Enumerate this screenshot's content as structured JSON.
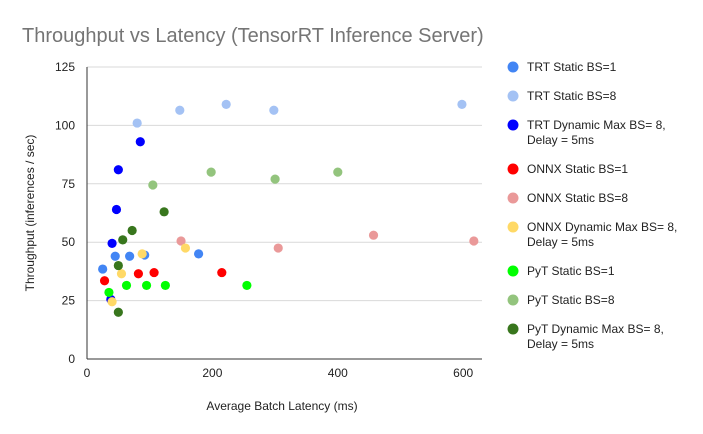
{
  "chart_data": {
    "type": "scatter",
    "title": "Throughput vs Latency (TensorRT Inference Server)",
    "xlabel": "Average Batch Latency (ms)",
    "ylabel": "Throughput (inferences / sec)",
    "xlim": [
      0,
      630
    ],
    "ylim": [
      0,
      125
    ],
    "xticks": [
      0,
      200,
      400,
      600
    ],
    "yticks": [
      0,
      25,
      50,
      75,
      100,
      125
    ],
    "grid": true,
    "legend_position": "right",
    "series": [
      {
        "name": "TRT Static BS=1",
        "color": "#4285f4",
        "points": [
          [
            25,
            38.5
          ],
          [
            45,
            44
          ],
          [
            68,
            44
          ],
          [
            92,
            44.5
          ],
          [
            178,
            45
          ]
        ]
      },
      {
        "name": "TRT Static BS=8",
        "color": "#a4c2f4",
        "points": [
          [
            80,
            101
          ],
          [
            148,
            106.5
          ],
          [
            222,
            109
          ],
          [
            298,
            106.5
          ],
          [
            598,
            109
          ]
        ]
      },
      {
        "name": "TRT Dynamic Max BS= 8, Delay = 5ms",
        "color": "#0000ff",
        "points": [
          [
            38,
            25.5
          ],
          [
            40,
            49.5
          ],
          [
            47,
            64
          ],
          [
            50,
            81
          ],
          [
            85,
            93
          ]
        ]
      },
      {
        "name": "ONNX Static BS=1",
        "color": "#ff0000",
        "points": [
          [
            28,
            33.5
          ],
          [
            82,
            36.5
          ],
          [
            107,
            37
          ],
          [
            215,
            37
          ]
        ]
      },
      {
        "name": "ONNX Static BS=8",
        "color": "#ea9999",
        "points": [
          [
            150,
            50.5
          ],
          [
            305,
            47.5
          ],
          [
            457,
            53
          ],
          [
            617,
            50.5
          ]
        ]
      },
      {
        "name": "ONNX Dynamic Max BS= 8, Delay = 5ms",
        "color": "#ffd966",
        "points": [
          [
            40,
            24.5
          ],
          [
            55,
            36.5
          ],
          [
            88,
            45
          ],
          [
            157,
            47.5
          ]
        ]
      },
      {
        "name": "PyT Static BS=1",
        "color": "#00ff00",
        "points": [
          [
            35,
            28.5
          ],
          [
            63,
            31.5
          ],
          [
            95,
            31.5
          ],
          [
            125,
            31.5
          ],
          [
            255,
            31.5
          ]
        ]
      },
      {
        "name": "PyT Static BS=8",
        "color": "#93c47d",
        "points": [
          [
            105,
            74.5
          ],
          [
            198,
            80
          ],
          [
            300,
            77
          ],
          [
            400,
            80
          ]
        ]
      },
      {
        "name": "PyT Dynamic Max BS= 8, Delay = 5ms",
        "color": "#38761d",
        "points": [
          [
            50,
            20
          ],
          [
            50,
            40
          ],
          [
            57,
            51
          ],
          [
            72,
            55
          ],
          [
            123,
            63
          ]
        ]
      }
    ]
  }
}
